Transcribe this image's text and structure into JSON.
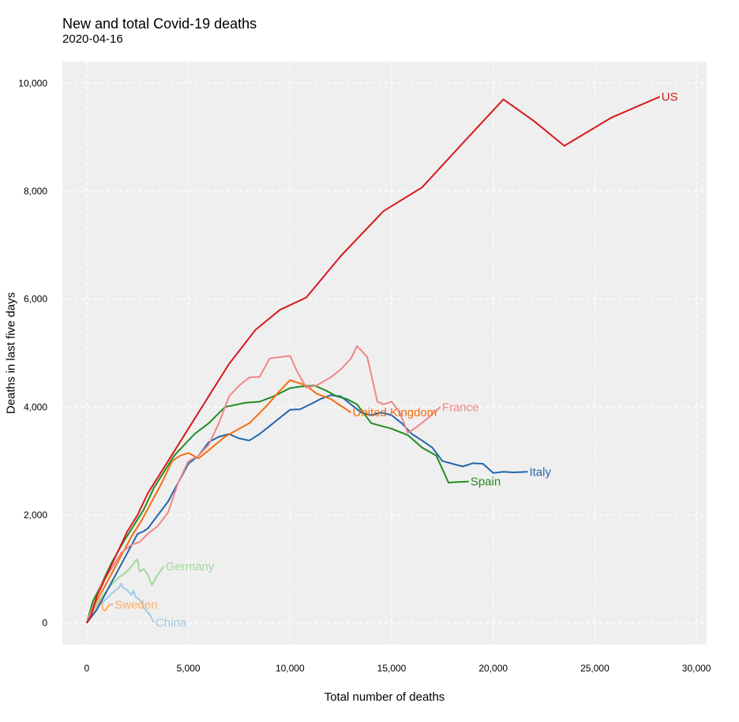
{
  "chart_data": {
    "type": "line",
    "title": "New and total Covid-19 deaths",
    "subtitle": "2020-04-16",
    "xlabel": "Total number of deaths",
    "ylabel": "Deaths in last five days",
    "xlim": [
      -1200,
      30500
    ],
    "ylim": [
      -400,
      10400
    ],
    "xticks": [
      0,
      5000,
      10000,
      15000,
      20000,
      25000,
      30000
    ],
    "xtick_labels": [
      "0",
      "5,000",
      "10,000",
      "15,000",
      "20,000",
      "25,000",
      "30,000"
    ],
    "yticks": [
      0,
      2000,
      4000,
      6000,
      8000,
      10000
    ],
    "ytick_labels": [
      "0",
      "2,000",
      "4,000",
      "6,000",
      "8,000",
      "10,000"
    ],
    "grid": true,
    "legend": "none (series labelled at line ends)",
    "series": [
      {
        "name": "China",
        "color": "#9ecae1",
        "x": [
          0,
          200,
          400,
          600,
          800,
          1000,
          1200,
          1400,
          1600,
          1700,
          1800,
          2000,
          2100,
          2200,
          2300,
          2400,
          2500,
          2600,
          2700,
          2800,
          3000,
          3100,
          3200,
          3300
        ],
        "y": [
          0,
          180,
          260,
          330,
          390,
          460,
          540,
          600,
          660,
          730,
          650,
          610,
          560,
          520,
          600,
          480,
          460,
          430,
          380,
          280,
          200,
          150,
          80,
          10
        ]
      },
      {
        "name": "Sweden",
        "color": "#fdae6b",
        "x": [
          0,
          100,
          200,
          300,
          400,
          500,
          600,
          700,
          800,
          900,
          1000,
          1100,
          1200,
          1300
        ],
        "y": [
          0,
          60,
          120,
          180,
          280,
          330,
          380,
          470,
          250,
          230,
          280,
          330,
          340,
          340
        ]
      },
      {
        "name": "Germany",
        "color": "#a1d99b",
        "x": [
          0,
          300,
          600,
          900,
          1200,
          1500,
          1800,
          2100,
          2400,
          2500,
          2600,
          2800,
          3000,
          3200,
          3500,
          3800
        ],
        "y": [
          0,
          250,
          420,
          560,
          700,
          820,
          900,
          1000,
          1150,
          1180,
          950,
          1000,
          900,
          700,
          900,
          1050
        ]
      },
      {
        "name": "Italy",
        "color": "#2166ac",
        "x": [
          0,
          500,
          1000,
          1500,
          2000,
          2500,
          2800,
          3000,
          3500,
          4000,
          4500,
          5000,
          5500,
          6000,
          6500,
          7000,
          7500,
          8000,
          8500,
          9000,
          9500,
          10000,
          10500,
          11000,
          11500,
          12000,
          12500,
          13000,
          13500,
          14000,
          14500,
          15000,
          15500,
          16000,
          16500,
          17000,
          17500,
          18000,
          18500,
          19000,
          19500,
          20000,
          20500,
          21000,
          21700
        ],
        "y": [
          0,
          250,
          600,
          950,
          1300,
          1650,
          1700,
          1750,
          2000,
          2250,
          2600,
          2950,
          3100,
          3350,
          3450,
          3500,
          3420,
          3380,
          3500,
          3650,
          3800,
          3950,
          3960,
          4050,
          4150,
          4220,
          4200,
          4050,
          3900,
          3850,
          3900,
          3850,
          3700,
          3500,
          3380,
          3250,
          3000,
          2950,
          2900,
          2960,
          2950,
          2780,
          2800,
          2790,
          2800
        ]
      },
      {
        "name": "Spain",
        "color": "#238b23",
        "x": [
          0,
          300,
          700,
          1200,
          1800,
          2300,
          2800,
          3300,
          3800,
          4300,
          4800,
          5300,
          6000,
          6800,
          7800,
          8500,
          9200,
          10000,
          10500,
          11200,
          11800,
          12300,
          12800,
          13300,
          14000,
          15000,
          15800,
          16500,
          17200,
          17800,
          18200,
          18800
        ],
        "y": [
          0,
          400,
          700,
          1100,
          1500,
          1800,
          2100,
          2500,
          2800,
          3100,
          3300,
          3500,
          3700,
          4000,
          4080,
          4100,
          4200,
          4350,
          4380,
          4400,
          4300,
          4200,
          4150,
          4050,
          3700,
          3600,
          3480,
          3250,
          3100,
          2600,
          2610,
          2620
        ]
      },
      {
        "name": "United Kingdom",
        "color": "#f46d0e",
        "x": [
          0,
          300,
          700,
          1200,
          1700,
          2200,
          2700,
          3200,
          3700,
          4200,
          4600,
          5000,
          5500,
          6000,
          6800,
          7500,
          8000,
          8800,
          9500,
          10000,
          10800,
          11300,
          12000,
          12600,
          13000
        ],
        "y": [
          0,
          300,
          550,
          900,
          1250,
          1600,
          1900,
          2250,
          2600,
          3000,
          3100,
          3150,
          3050,
          3200,
          3450,
          3600,
          3700,
          4000,
          4300,
          4500,
          4400,
          4250,
          4150,
          4000,
          3900
        ]
      },
      {
        "name": "France",
        "color": "#f28585",
        "x": [
          0,
          300,
          700,
          1200,
          1700,
          2200,
          2600,
          3000,
          3500,
          4000,
          4500,
          5000,
          5500,
          6000,
          6500,
          7000,
          7500,
          8000,
          8500,
          9000,
          10000,
          10300,
          10800,
          11300,
          12000,
          12500,
          13000,
          13300,
          13800,
          14300,
          14600,
          15000,
          15400,
          15800,
          16300,
          16800,
          17400
        ],
        "y": [
          0,
          300,
          700,
          1000,
          1300,
          1450,
          1500,
          1650,
          1800,
          2050,
          2600,
          3000,
          3100,
          3300,
          3700,
          4200,
          4400,
          4550,
          4560,
          4900,
          4950,
          4700,
          4360,
          4400,
          4550,
          4700,
          4900,
          5130,
          4930,
          4100,
          4050,
          4100,
          3900,
          3520,
          3650,
          3800,
          4000
        ]
      },
      {
        "name": "US",
        "color": "#d7191c",
        "x": [
          0,
          200,
          500,
          1000,
          1500,
          2000,
          2500,
          3000,
          4000,
          5000,
          6000,
          7000,
          8300,
          9500,
          10800,
          12500,
          14600,
          16500,
          18600,
          20500,
          22000,
          23500,
          25800,
          28200
        ],
        "y": [
          0,
          120,
          500,
          900,
          1300,
          1700,
          2000,
          2400,
          3000,
          3600,
          4200,
          4800,
          5430,
          5800,
          6030,
          6800,
          7630,
          8070,
          8930,
          9700,
          9300,
          8840,
          9360,
          9750
        ]
      }
    ]
  }
}
